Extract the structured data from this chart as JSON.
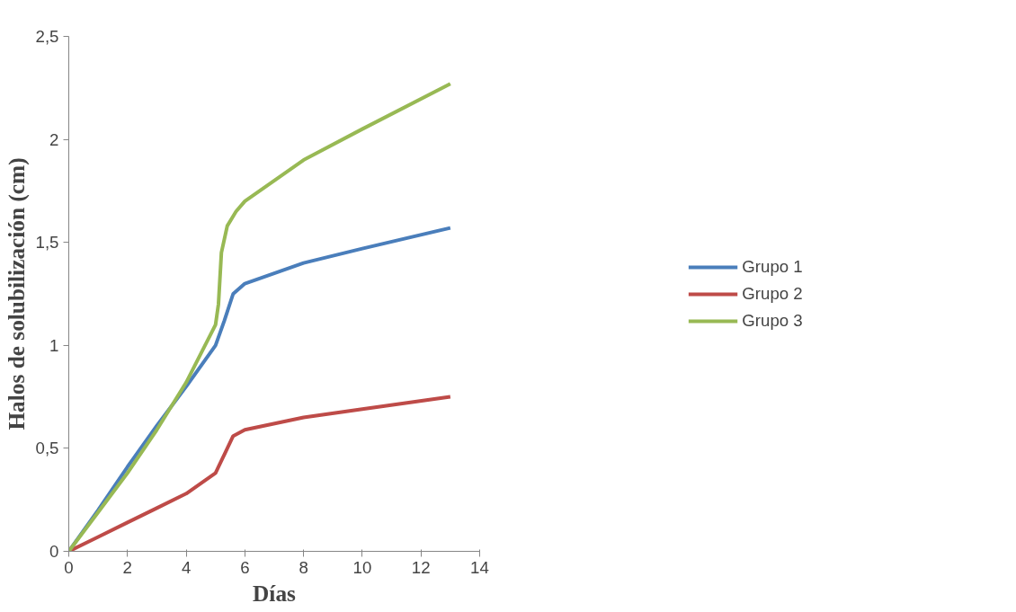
{
  "chart_data": {
    "type": "line",
    "xlabel": "Días",
    "ylabel": "Halos de solubilización (cm)",
    "xlim": [
      0,
      14
    ],
    "xticks": [
      0,
      2,
      4,
      6,
      8,
      10,
      12,
      14
    ],
    "ylim": [
      0,
      2.5
    ],
    "yticks": [
      0,
      {
        "value": 0.5,
        "label": "0,5"
      },
      1,
      {
        "value": 1.5,
        "label": "1,5"
      },
      2,
      {
        "value": 2.5,
        "label": "2,5"
      }
    ],
    "grid": false,
    "legend": "right",
    "marker": "none",
    "line_style": "solid",
    "series": [
      {
        "name": "Grupo 1",
        "color": "#4a7ebb",
        "x": [
          0,
          1,
          2,
          3,
          4,
          5,
          5.3,
          5.6,
          6,
          8,
          10,
          13
        ],
        "values": [
          0,
          0.2,
          0.41,
          0.61,
          0.8,
          1.0,
          1.12,
          1.25,
          1.3,
          1.4,
          1.47,
          1.57
        ]
      },
      {
        "name": "Grupo 2",
        "color": "#be4b48",
        "x": [
          0,
          1,
          2,
          3,
          4,
          5,
          5.3,
          5.6,
          6,
          8,
          10,
          13
        ],
        "values": [
          0,
          0.07,
          0.14,
          0.21,
          0.28,
          0.38,
          0.47,
          0.56,
          0.59,
          0.65,
          0.69,
          0.75
        ]
      },
      {
        "name": "Grupo 3",
        "color": "#98b954",
        "x": [
          0,
          1,
          2,
          3,
          4,
          5,
          5.1,
          5.2,
          5.4,
          5.7,
          6,
          8,
          10,
          13
        ],
        "values": [
          0,
          0.19,
          0.38,
          0.59,
          0.82,
          1.1,
          1.2,
          1.45,
          1.58,
          1.65,
          1.7,
          1.9,
          2.05,
          2.27
        ]
      }
    ]
  }
}
